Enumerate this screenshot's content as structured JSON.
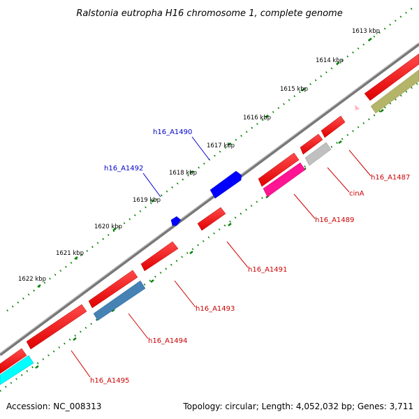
{
  "title": "Ralstonia eutropha H16 chromosome 1, complete genome",
  "footer": {
    "accession": "Accession: NC_008313",
    "summary": "Topology: circular; Length: 4,052,032 bp; Genes: 3,711"
  },
  "ruler": {
    "ticks": [
      {
        "label": "1613 kbp"
      },
      {
        "label": "1614 kbp"
      },
      {
        "label": "1615 kbp"
      },
      {
        "label": "1616 kbp"
      },
      {
        "label": "1617 kbp"
      },
      {
        "label": "1618 kbp"
      },
      {
        "label": "1619 kbp"
      },
      {
        "label": "1620 kbp"
      },
      {
        "label": "1621 kbp"
      },
      {
        "label": "1622 kbp"
      }
    ]
  },
  "genes": [
    {
      "name": "h16_A1487",
      "label_color": "#cc0000",
      "feature_color": "#ff0000"
    },
    {
      "name": "cinA",
      "label_color": "#cc0000",
      "feature_color": "#c0c0c0"
    },
    {
      "name": "h16_A1489",
      "label_color": "#cc0000",
      "feature_color": "#ff1493"
    },
    {
      "name": "h16_A1490",
      "label_color": "#0000cc",
      "feature_color": "#0000ff"
    },
    {
      "name": "h16_A1491",
      "label_color": "#cc0000",
      "feature_color": "#ff0000"
    },
    {
      "name": "h16_A1492",
      "label_color": "#0000cc",
      "feature_color": "#0000ff"
    },
    {
      "name": "h16_A1493",
      "label_color": "#cc0000",
      "feature_color": "#ff0000"
    },
    {
      "name": "h16_A1494",
      "label_color": "#cc0000",
      "feature_color": "#4682b4"
    },
    {
      "name": "h16_A1495",
      "label_color": "#cc0000",
      "feature_color": "#00ffff"
    }
  ],
  "colors": {
    "backbone": "#808080",
    "tick_dots": "#008000",
    "cds_forward": "#ff0000",
    "cds_reverse_blue": "#0000ff",
    "olive_feature": "#b5b56a",
    "pink_marker": "#ffb6c1"
  }
}
